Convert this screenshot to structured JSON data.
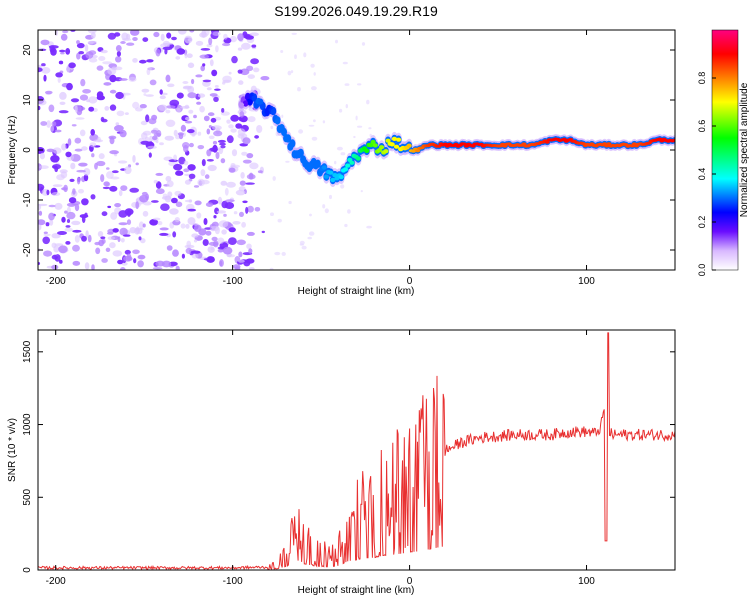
{
  "title": "S199.2026.049.19.29.R19",
  "chart_data": [
    {
      "type": "heatmap",
      "xlabel": "Height of straight line (km)",
      "ylabel": "Frequency (Hz)",
      "xlim": [
        -210,
        150
      ],
      "ylim": [
        -24,
        24
      ],
      "xticks": [
        -200,
        -100,
        0,
        100
      ],
      "yticks": [
        -20,
        -10,
        0,
        10,
        20
      ],
      "colorbar": {
        "label": "Normalized spectral amplitude",
        "range": [
          0,
          1
        ],
        "ticks": [
          "0.0",
          "0.2",
          "0.4",
          "0.6",
          "0.8"
        ],
        "colors": [
          "#ffffff",
          "#d8b8ff",
          "#6a0dff",
          "#0000ff",
          "#00ffff",
          "#00ff00",
          "#ffff00",
          "#ff8000",
          "#ff0000",
          "#ff0080"
        ]
      },
      "ridge": {
        "x": [
          -95,
          -90,
          -85,
          -80,
          -75,
          -70,
          -65,
          -60,
          -55,
          -50,
          -45,
          -40,
          -35,
          -30,
          -25,
          -20,
          -15,
          -10,
          -5,
          0,
          5,
          10,
          20,
          30,
          40,
          50,
          60,
          70,
          80,
          90,
          100,
          110,
          120,
          130,
          140,
          150
        ],
        "freq": [
          9,
          10,
          9,
          8,
          6,
          3,
          0,
          -2,
          -3,
          -4,
          -5,
          -6,
          -3,
          -1,
          0,
          1,
          0,
          2,
          1,
          0,
          0,
          1,
          1,
          1,
          1,
          1,
          1,
          1,
          2,
          2,
          1,
          1,
          1,
          1,
          2,
          2
        ],
        "amplitude": [
          0.1,
          0.25,
          0.3,
          0.25,
          0.3,
          0.3,
          0.3,
          0.3,
          0.3,
          0.3,
          0.35,
          0.35,
          0.4,
          0.45,
          0.55,
          0.6,
          0.65,
          0.7,
          0.7,
          0.75,
          0.8,
          0.85,
          0.9,
          0.9,
          0.9,
          0.85,
          0.85,
          0.85,
          0.9,
          0.9,
          0.85,
          0.85,
          0.85,
          0.85,
          0.9,
          0.9
        ]
      },
      "noise_region": {
        "x_from": -210,
        "x_to": -80,
        "amplitude": 0.15
      }
    },
    {
      "type": "line",
      "xlabel": "Height of straight line (km)",
      "ylabel": "SNR (10 * v/v)",
      "xlim": [
        -210,
        150
      ],
      "ylim": [
        0,
        1650
      ],
      "xticks": [
        -200,
        -100,
        0,
        100
      ],
      "yticks": [
        0,
        500,
        1000,
        1500
      ],
      "series": [
        {
          "name": "SNR",
          "color": "#e83030",
          "x": [
            -210,
            -200,
            -150,
            -100,
            -80,
            -75,
            -70,
            -65,
            -60,
            -55,
            -50,
            -45,
            -40,
            -35,
            -30,
            -25,
            -20,
            -15,
            -10,
            -5,
            0,
            5,
            10,
            15,
            20,
            30,
            40,
            50,
            60,
            70,
            80,
            90,
            100,
            105,
            108,
            110,
            111,
            112,
            113,
            115,
            120,
            130,
            140,
            150
          ],
          "y": [
            15,
            15,
            15,
            15,
            20,
            40,
            120,
            250,
            220,
            150,
            120,
            110,
            150,
            300,
            350,
            420,
            420,
            500,
            520,
            560,
            620,
            640,
            700,
            760,
            820,
            880,
            910,
            920,
            930,
            930,
            930,
            950,
            950,
            940,
            980,
            1100,
            200,
            1630,
            940,
            930,
            930,
            930,
            930,
            930
          ]
        }
      ]
    }
  ]
}
